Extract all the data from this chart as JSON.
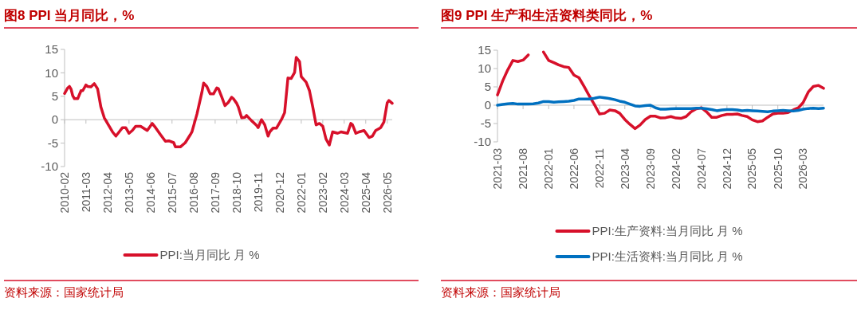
{
  "chart_data": [
    {
      "type": "line",
      "title": "图8  PPI 当月同比，%",
      "annotations": [
        "资料来源：国家统计局"
      ],
      "legend": "bottom",
      "x": [
        "2010-02",
        "2010-04",
        "2010-05",
        "2010-06",
        "2010-07",
        "2010-08",
        "2010-10",
        "2010-12",
        "2011-01",
        "2011-03",
        "2011-04",
        "2011-06",
        "2011-08",
        "2011-10",
        "2011-12",
        "2012-02",
        "2012-04",
        "2012-07",
        "2012-09",
        "2012-11",
        "2013-01",
        "2013-03",
        "2013-05",
        "2013-07",
        "2013-09",
        "2013-12",
        "2014-04",
        "2014-07",
        "2014-09",
        "2014-12",
        "2015-03",
        "2015-05",
        "2015-08",
        "2015-09",
        "2015-12",
        "2016-03",
        "2016-06",
        "2016-07",
        "2016-10",
        "2017-01",
        "2017-02",
        "2017-04",
        "2017-06",
        "2017-08",
        "2017-10",
        "2017-11",
        "2018-01",
        "2018-03",
        "2018-05",
        "2018-07",
        "2018-08",
        "2018-10",
        "2018-11",
        "2019-01",
        "2019-03",
        "2019-04",
        "2019-07",
        "2019-10",
        "2019-11",
        "2020-01",
        "2020-03",
        "2020-05",
        "2020-06",
        "2020-08",
        "2020-10",
        "2021-01",
        "2021-03",
        "2021-05",
        "2021-07",
        "2021-09",
        "2021-10",
        "2021-12",
        "2022-01",
        "2022-04",
        "2022-06",
        "2022-08",
        "2022-10",
        "2022-12",
        "2023-02",
        "2023-04",
        "2023-06",
        "2023-08",
        "2023-11",
        "2024-01",
        "2024-05",
        "2024-07",
        "2024-08",
        "2024-10",
        "2024-12",
        "2025-03",
        "2025-06",
        "2025-08",
        "2025-10",
        "2026-01",
        "2026-03",
        "2026-05",
        "2026-06",
        "2026-08"
      ],
      "xlim": [
        "2010-02",
        "2026-08"
      ],
      "xticks": [
        "2010-02",
        "2011-03",
        "2012-04",
        "2013-05",
        "2014-06",
        "2015-07",
        "2016-08",
        "2017-09",
        "2018-10",
        "2019-11",
        "2020-12",
        "2022-01",
        "2023-02",
        "2024-03",
        "2025-04",
        "2026-05"
      ],
      "ylim": [
        -10,
        15
      ],
      "yticks": [
        -10,
        -5,
        0,
        5,
        10,
        15
      ],
      "series": [
        {
          "name": "PPI:当月同比 月 %",
          "color": "#d7102a",
          "values": [
            5.6,
            6.8,
            7.1,
            6.5,
            5.1,
            4.5,
            4.5,
            6.2,
            6.2,
            7.4,
            7.1,
            7.0,
            7.7,
            6.6,
            2.7,
            0.4,
            -0.8,
            -2.6,
            -3.5,
            -2.6,
            -1.7,
            -1.7,
            -2.9,
            -2.3,
            -1.4,
            -1.4,
            -2.3,
            -0.8,
            -1.7,
            -3.2,
            -4.6,
            -4.5,
            -4.9,
            -5.8,
            -5.8,
            -4.9,
            -3.2,
            -2.6,
            1.2,
            5.9,
            7.8,
            7.1,
            5.5,
            5.5,
            6.8,
            6.6,
            4.8,
            3.0,
            3.7,
            4.8,
            4.5,
            3.5,
            2.7,
            0.4,
            0.5,
            0.9,
            -0.2,
            -1.2,
            -1.7,
            0,
            -1.1,
            -3.5,
            -2.6,
            -1.8,
            -1.8,
            0,
            1.5,
            8.9,
            8.8,
            10.1,
            13.3,
            12.4,
            9.2,
            8.0,
            6.2,
            2.7,
            -1.1,
            -0.8,
            -1.4,
            -4.1,
            -5.4,
            -2.6,
            -2.9,
            -2.6,
            -2.9,
            -0.8,
            -1.1,
            -2.9,
            -2.6,
            -2.3,
            -3.8,
            -3.5,
            -2.3,
            -1.7,
            -0.5,
            3.6,
            4.1,
            3.5
          ]
        }
      ]
    },
    {
      "type": "line",
      "title": "图9  PPI 生产和生活资料类同比，%",
      "annotations": [
        "资料来源：国家统计局"
      ],
      "legend": "bottom",
      "x": [
        "2021-03",
        "2021-04",
        "2021-05",
        "2021-06",
        "2021-07",
        "2021-08",
        "2021-09",
        "2021-10",
        "2021-11",
        "2021-12",
        "2022-01",
        "2022-02",
        "2022-03",
        "2022-04",
        "2022-05",
        "2022-06",
        "2022-07",
        "2022-08",
        "2022-09",
        "2022-10",
        "2022-11",
        "2022-12",
        "2023-01",
        "2023-02",
        "2023-03",
        "2023-04",
        "2023-05",
        "2023-06",
        "2023-07",
        "2023-08",
        "2023-09",
        "2023-10",
        "2023-11",
        "2023-12",
        "2024-01",
        "2024-02",
        "2024-03",
        "2024-04",
        "2024-05",
        "2024-06",
        "2024-07",
        "2024-08",
        "2024-09",
        "2024-10",
        "2024-11",
        "2024-12",
        "2025-01",
        "2025-02",
        "2025-03",
        "2025-04",
        "2025-05",
        "2025-06",
        "2025-07",
        "2025-08",
        "2025-09",
        "2025-10",
        "2025-11",
        "2025-12",
        "2026-01",
        "2026-02",
        "2026-03",
        "2026-04",
        "2026-05",
        "2026-06",
        "2026-07"
      ],
      "xlim": [
        "2021-03",
        "2026-07"
      ],
      "xticks": [
        "2021-03",
        "2021-08",
        "2022-01",
        "2022-06",
        "2022-11",
        "2023-04",
        "2023-09",
        "2024-02",
        "2024-07",
        "2024-12",
        "2025-05",
        "2025-10",
        "2026-03"
      ],
      "ylim": [
        -10,
        15
      ],
      "yticks": [
        -10,
        -5,
        0,
        5,
        10,
        15
      ],
      "series": [
        {
          "name": "PPI:生产资料:当月同比 月 %",
          "color": "#d7102a",
          "values": [
            2.8,
            6.6,
            9.6,
            12.2,
            11.9,
            12.3,
            13.7,
            null,
            null,
            14.5,
            12.2,
            11.6,
            11.0,
            10.5,
            10.3,
            8.2,
            7.5,
            5.1,
            2.5,
            0.2,
            -2.4,
            -2.2,
            -1.3,
            -1.5,
            -2.2,
            -3.9,
            -5.2,
            -6.4,
            -5.4,
            -3.9,
            -3.0,
            -3.0,
            -3.5,
            -3.4,
            -3.1,
            -3.5,
            -3.6,
            -3.1,
            -1.8,
            -1.0,
            -0.7,
            -1.8,
            -3.3,
            -3.3,
            -2.8,
            -2.5,
            -2.5,
            -2.4,
            -2.8,
            -3.1,
            -4.0,
            -4.5,
            -4.3,
            -3.3,
            -2.4,
            -2.2,
            -2.2,
            -2.0,
            -1.3,
            -0.7,
            0.7,
            3.6,
            5.1,
            5.4,
            4.6
          ]
        },
        {
          "name": "PPI:生活资料:当月同比 月 %",
          "color": "#0070c0",
          "values": [
            0.0,
            0.2,
            0.4,
            0.5,
            0.3,
            0.3,
            0.3,
            0.4,
            0.6,
            1.0,
            1.0,
            0.8,
            0.9,
            1.0,
            1.1,
            1.3,
            1.7,
            1.7,
            1.7,
            1.9,
            2.2,
            2.0,
            1.8,
            1.5,
            1.1,
            0.8,
            0.3,
            -0.2,
            -0.3,
            -0.1,
            0.0,
            -0.7,
            -1.1,
            -1.1,
            -1.0,
            -0.9,
            -0.9,
            -0.9,
            -0.9,
            -0.8,
            -0.8,
            -1.0,
            -1.2,
            -1.5,
            -1.3,
            -1.2,
            -1.2,
            -1.3,
            -1.5,
            -1.4,
            -1.5,
            -1.6,
            -1.7,
            -1.8,
            -1.6,
            -1.5,
            -1.4,
            -1.5,
            -1.6,
            -1.4,
            -1.1,
            -0.9,
            -0.8,
            -0.9,
            -0.8
          ]
        }
      ]
    }
  ]
}
